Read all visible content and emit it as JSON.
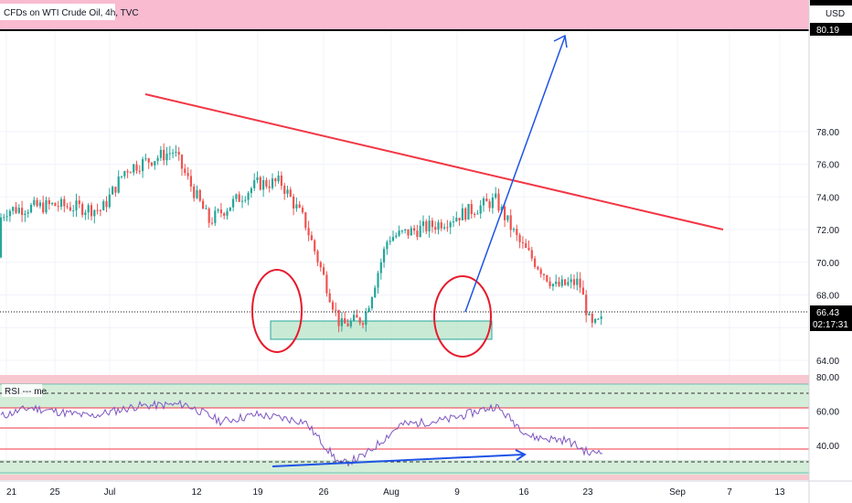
{
  "header": {
    "symbol_title": "CFDs on WTI Crude Oil, 4h, TVC",
    "currency": "USD"
  },
  "price_scale": {
    "resistance_label": "80.19",
    "current_price_label": "66.43",
    "countdown_label": "02:17:31"
  },
  "rsi_panel": {
    "title": "RSI --- me"
  },
  "colors": {
    "up_candle": "#26a69a",
    "down_candle": "#ef5350",
    "trendline": "#f23645",
    "projection_arrow": "#1e53e5",
    "support_zone_fill": "#b7e4c7",
    "support_zone_border": "#26a69a",
    "resistance_band": "#f8bbd0",
    "rsi_line": "#7e57c2"
  },
  "chart_data": [
    {
      "type": "candlestick",
      "title": "CFDs on WTI Crude Oil, 4h, TVC",
      "x_tick_labels": [
        "21",
        "25",
        "Jul",
        "12",
        "19",
        "26",
        "Aug",
        "9",
        "16",
        "23",
        "Sep",
        "7",
        "13"
      ],
      "y_tick_labels": [
        "78.00",
        "76.00",
        "74.00",
        "72.00",
        "70.00",
        "68.00",
        "64.00"
      ],
      "ylim": [
        63.3,
        81.7
      ],
      "resistance_level": 80.19,
      "last_price": 66.43,
      "price_path_keypoints": [
        {
          "date": "Jun 18",
          "price": 70.3
        },
        {
          "date": "Jun 21",
          "price": 73.2
        },
        {
          "date": "Jun 25",
          "price": 73.5
        },
        {
          "date": "Jun 29",
          "price": 73.2
        },
        {
          "date": "Jul 1",
          "price": 75.7
        },
        {
          "date": "Jul 5",
          "price": 76.8
        },
        {
          "date": "Jul 8",
          "price": 72.5
        },
        {
          "date": "Jul 12",
          "price": 74.8
        },
        {
          "date": "Jul 14",
          "price": 74.9
        },
        {
          "date": "Jul 16",
          "price": 72.5
        },
        {
          "date": "Jul 19",
          "price": 66.1
        },
        {
          "date": "Jul 21",
          "price": 66.6
        },
        {
          "date": "Jul 23",
          "price": 71.5
        },
        {
          "date": "Jul 27",
          "price": 72.3
        },
        {
          "date": "Aug 1",
          "price": 73.8
        },
        {
          "date": "Aug 3",
          "price": 71.2
        },
        {
          "date": "Aug 6",
          "price": 68.5
        },
        {
          "date": "Aug 8",
          "price": 68.8
        },
        {
          "date": "Aug 9",
          "price": 66.0
        },
        {
          "date": "Aug 10",
          "price": 66.43
        }
      ],
      "annotations": {
        "descending_trendline": [
          {
            "date": "Jul 5",
            "price": 77.1
          },
          {
            "date": "Sep 4",
            "price": 70.4
          }
        ],
        "projection_arrow": [
          {
            "date": "Aug 10",
            "price": 66.4
          },
          {
            "date": "Aug 23",
            "price": 80.1
          }
        ],
        "support_zone": {
          "from": "Jul 19",
          "to": "Aug 11",
          "low": 65.1,
          "high": 65.9
        },
        "circles": [
          {
            "date": "Jul 20",
            "price": 66.4
          },
          {
            "date": "Aug 9",
            "price": 66.2
          }
        ]
      }
    },
    {
      "type": "line",
      "title": "RSI --- me",
      "y_tick_labels": [
        "80.00",
        "60.00",
        "40.00"
      ],
      "ylim": [
        22,
        80
      ],
      "upper_zone": [
        67,
        80
      ],
      "lower_zone": [
        22,
        30
      ],
      "guide_levels": [
        60,
        50,
        40
      ],
      "dashed_levels": [
        70,
        30
      ],
      "rsi_keypoints": [
        {
          "date": "Jun 18",
          "value": 52
        },
        {
          "date": "Jun 23",
          "value": 62
        },
        {
          "date": "Jun 28",
          "value": 57
        },
        {
          "date": "Jul 2",
          "value": 63
        },
        {
          "date": "Jul 6",
          "value": 64
        },
        {
          "date": "Jul 9",
          "value": 54
        },
        {
          "date": "Jul 12",
          "value": 58
        },
        {
          "date": "Jul 16",
          "value": 54
        },
        {
          "date": "Jul 19",
          "value": 29
        },
        {
          "date": "Jul 21",
          "value": 34
        },
        {
          "date": "Jul 24",
          "value": 52
        },
        {
          "date": "Jul 28",
          "value": 55
        },
        {
          "date": "Aug 1",
          "value": 63
        },
        {
          "date": "Aug 4",
          "value": 45
        },
        {
          "date": "Aug 7",
          "value": 43
        },
        {
          "date": "Aug 9",
          "value": 35
        },
        {
          "date": "Aug 10",
          "value": 38
        }
      ],
      "divergence_arrow": [
        {
          "date": "Jul 19",
          "value": 29.5
        },
        {
          "date": "Aug 16",
          "value": 34
        }
      ]
    }
  ]
}
